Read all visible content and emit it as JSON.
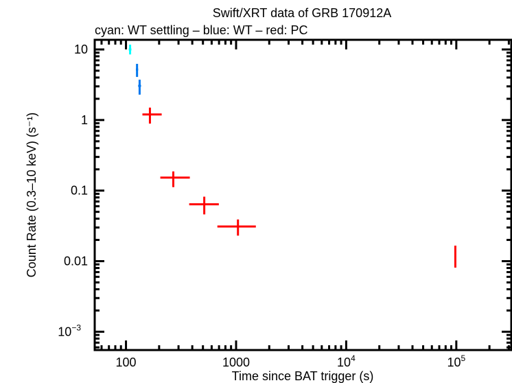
{
  "chart_data": {
    "type": "scatter",
    "title": "Swift/XRT data of GRB 170912A",
    "subtitle": "cyan: WT settling – blue: WT – red: PC",
    "xlabel": "Time since BAT trigger (s)",
    "ylabel": "Count Rate (0.3–10 keV) (s⁻¹)",
    "x_scale": "log",
    "y_scale": "log",
    "xlim": [
      52,
      316000
    ],
    "ylim": [
      0.00055,
      13.7
    ],
    "grid": false,
    "x_ticks": [
      {
        "value": 100,
        "label": "100"
      },
      {
        "value": 1000,
        "label": "1000"
      },
      {
        "value": 10000,
        "label": "10",
        "exp": "4"
      },
      {
        "value": 100000,
        "label": "10",
        "exp": "5"
      }
    ],
    "y_ticks": [
      {
        "value": 10,
        "label": "10"
      },
      {
        "value": 1,
        "label": "1"
      },
      {
        "value": 0.1,
        "label": "0.1"
      },
      {
        "value": 0.01,
        "label": "0.01"
      },
      {
        "value": 0.001,
        "label": "10",
        "exp": "−3"
      }
    ],
    "series": [
      {
        "mode": "WT settling",
        "color": "#00ffff",
        "points": [
          {
            "x": 109,
            "xlo": 106,
            "xhi": 112,
            "y": 10.0,
            "ylo": 8.5,
            "yhi": 11.7
          }
        ]
      },
      {
        "mode": "WT",
        "color": "#0077ee",
        "points": [
          {
            "x": 126,
            "xlo": 123,
            "xhi": 129,
            "y": 5.2,
            "ylo": 4.08,
            "yhi": 6.25
          },
          {
            "x": 133,
            "xlo": 129,
            "xhi": 137,
            "y": 3.05,
            "ylo": 2.29,
            "yhi": 3.73
          }
        ]
      },
      {
        "mode": "PC",
        "color": "#ff0000",
        "points": [
          {
            "x": 165,
            "xlo": 141,
            "xhi": 211,
            "y": 1.2,
            "ylo": 0.89,
            "yhi": 1.5
          },
          {
            "x": 269,
            "xlo": 205,
            "xhi": 380,
            "y": 0.153,
            "ylo": 0.112,
            "yhi": 0.187
          },
          {
            "x": 514,
            "xlo": 375,
            "xhi": 697,
            "y": 0.064,
            "ylo": 0.046,
            "yhi": 0.082
          },
          {
            "x": 1040,
            "xlo": 676,
            "xhi": 1512,
            "y": 0.031,
            "ylo": 0.023,
            "yhi": 0.039
          },
          {
            "x": 98000,
            "xlo": 97000,
            "xhi": 99000,
            "y": 0.0119,
            "ylo": 0.0081,
            "yhi": 0.0166
          }
        ]
      }
    ]
  }
}
